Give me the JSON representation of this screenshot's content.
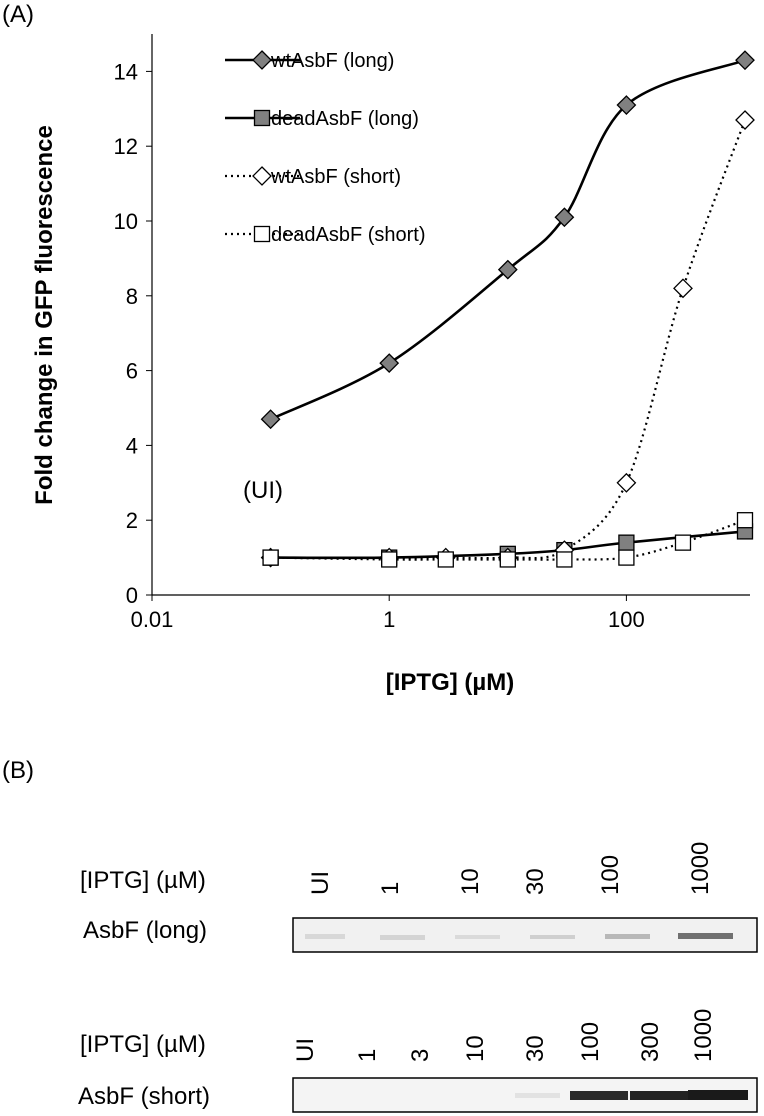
{
  "chart_data": {
    "type": "line",
    "panel_label": "(A)",
    "annotation": "(UI)",
    "x_label": "[IPTG] (µM)",
    "y_label": "Fold change in GFP fluorescence",
    "xscale": "log",
    "xlim": [
      0.01,
      1000
    ],
    "xticks": [
      0.01,
      1,
      100
    ],
    "ylim": [
      0,
      15
    ],
    "yticks": [
      0,
      2,
      4,
      6,
      8,
      10,
      12,
      14
    ],
    "legend": "upper left",
    "series": [
      {
        "name": "wtAsbF (long)",
        "color": "#000000",
        "marker": "diamond",
        "marker_fill": "#808080",
        "linestyle": "solid",
        "x": [
          0.1,
          1,
          10,
          30,
          100,
          1000
        ],
        "values": [
          4.7,
          6.2,
          8.7,
          10.1,
          13.1,
          14.3
        ]
      },
      {
        "name": "deadAsbF (long)",
        "color": "#000000",
        "marker": "square",
        "marker_fill": "#808080",
        "linestyle": "solid",
        "x": [
          0.1,
          1,
          10,
          30,
          100,
          1000
        ],
        "values": [
          1.0,
          1.0,
          1.1,
          1.2,
          1.4,
          1.7
        ]
      },
      {
        "name": "wtAsbF (short)",
        "color": "#000000",
        "marker": "diamond",
        "marker_fill": "#ffffff",
        "linestyle": "dotted",
        "x": [
          0.1,
          1,
          3,
          10,
          30,
          100,
          300,
          1000
        ],
        "values": [
          1.0,
          1.0,
          1.0,
          1.0,
          1.2,
          3.0,
          8.2,
          12.7
        ]
      },
      {
        "name": "deadAsbF (short)",
        "color": "#000000",
        "marker": "square",
        "marker_fill": "#ffffff",
        "linestyle": "dotted",
        "x": [
          0.1,
          1,
          3,
          10,
          30,
          100,
          300,
          1000
        ],
        "values": [
          1.0,
          0.95,
          0.95,
          0.95,
          0.95,
          1.0,
          1.4,
          2.0
        ]
      }
    ]
  },
  "panel_b": {
    "label": "(B)",
    "blots": [
      {
        "row_label": "[IPTG] (µM)",
        "lanes": [
          "UI",
          "1",
          "10",
          "30",
          "100",
          "1000"
        ],
        "protein": "AsbF (long)"
      },
      {
        "row_label": "[IPTG] (µM)",
        "lanes": [
          "UI",
          "1",
          "3",
          "10",
          "30",
          "100",
          "300",
          "1000"
        ],
        "protein": "AsbF (short)"
      }
    ]
  }
}
